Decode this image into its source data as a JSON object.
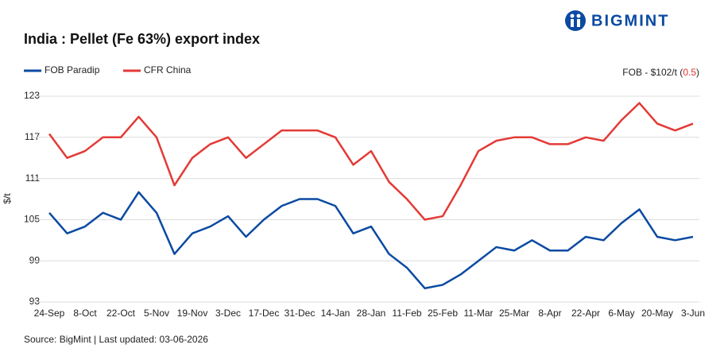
{
  "brand": "BIGMINT",
  "chart_data": {
    "type": "line",
    "title": "India : Pellet (Fe 63%) export index",
    "y_label": "$/t",
    "annotation": [
      "FOB - $102/t (",
      "0.5",
      ")"
    ],
    "annotation_color": "#e03030",
    "source": "Source: BigMint | Last updated: 03-06-2026",
    "categories": [
      "24-Sep",
      null,
      "8-Oct",
      null,
      "22-Oct",
      null,
      "5-Nov",
      null,
      "19-Nov",
      null,
      "3-Dec",
      null,
      "17-Dec",
      null,
      "31-Dec",
      null,
      "14-Jan",
      null,
      "28-Jan",
      null,
      "11-Feb",
      null,
      "25-Feb",
      null,
      "11-Mar",
      null,
      "25-Mar",
      null,
      "8-Apr",
      null,
      "22-Apr",
      null,
      "6-May",
      null,
      "20-May",
      null,
      "3-Jun"
    ],
    "series": [
      {
        "name": "FOB Paradip",
        "color": "#0b4aa2",
        "values": [
          106,
          103,
          104,
          106,
          105,
          109,
          106,
          100,
          103,
          104,
          105.5,
          102.5,
          105,
          107,
          108,
          108,
          107,
          103,
          104,
          100,
          98,
          95,
          95.5,
          97,
          99,
          101,
          100.5,
          102,
          100.5,
          100.5,
          102.5,
          102,
          104.5,
          106.5,
          102.5,
          102,
          102.5
        ]
      },
      {
        "name": "CFR China",
        "color": "#e33a36",
        "values": [
          117.5,
          114,
          115,
          117,
          117,
          120,
          117,
          110,
          114,
          116,
          117,
          114,
          116,
          118,
          118,
          118,
          117,
          113,
          115,
          110.5,
          108,
          105,
          105.5,
          110,
          115,
          116.5,
          117,
          117,
          116,
          116,
          117,
          116.5,
          119.5,
          122,
          119,
          118,
          119
        ]
      }
    ],
    "ylim": [
      93,
      123
    ],
    "yticks": [
      93,
      99,
      105,
      111,
      117,
      123
    ],
    "grid": true
  }
}
